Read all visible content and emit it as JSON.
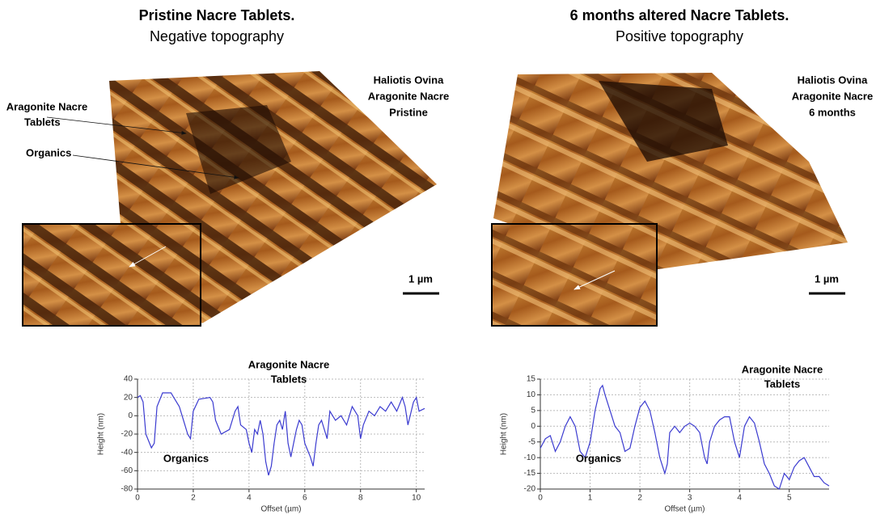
{
  "panels": [
    {
      "title": "Pristine Nacre Tablets.",
      "subtitle": "Negative topography",
      "sample_label": [
        "Haliotis Ovina",
        "Aragonite Nacre",
        "Pristine"
      ],
      "annotations": [
        "Aragonite Nacre",
        "Tablets",
        "Organics"
      ],
      "scale_bar": "1 µm"
    },
    {
      "title": "6 months altered Nacre Tablets.",
      "subtitle": "Positive topography",
      "sample_label": [
        "Haliotis Ovina",
        "Aragonite Nacre",
        "6 months"
      ],
      "scale_bar": "1 µm"
    }
  ],
  "chart_data": [
    {
      "type": "line",
      "xlabel": "Offset (µm)",
      "ylabel": "Height (nm)",
      "color": "#3b3bd0",
      "grid": true,
      "annotations": [
        "Aragonite Nacre",
        "Tablets",
        "Organics"
      ],
      "xlim": [
        0,
        10.3
      ],
      "xticks": [
        0,
        2,
        4,
        6,
        8,
        10
      ],
      "ylim": [
        -80,
        40
      ],
      "yticks": [
        -80,
        -60,
        -40,
        -20,
        0,
        20,
        40
      ],
      "x": [
        0,
        0.1,
        0.2,
        0.3,
        0.5,
        0.6,
        0.7,
        0.9,
        1.2,
        1.3,
        1.5,
        1.7,
        1.8,
        1.9,
        2.0,
        2.2,
        2.6,
        2.7,
        2.8,
        3.0,
        3.3,
        3.5,
        3.6,
        3.7,
        3.9,
        4.0,
        4.1,
        4.2,
        4.3,
        4.4,
        4.5,
        4.6,
        4.7,
        4.8,
        4.9,
        5.0,
        5.1,
        5.2,
        5.3,
        5.4,
        5.5,
        5.6,
        5.7,
        5.8,
        5.9,
        6.0,
        6.2,
        6.3,
        6.4,
        6.5,
        6.6,
        6.8,
        6.9,
        7.1,
        7.3,
        7.5,
        7.7,
        7.9,
        8.0,
        8.1,
        8.3,
        8.5,
        8.7,
        8.9,
        9.1,
        9.3,
        9.5,
        9.6,
        9.7,
        9.9,
        10.0,
        10.1,
        10.3
      ],
      "values": [
        20,
        22,
        15,
        -20,
        -35,
        -30,
        10,
        25,
        25,
        20,
        10,
        -10,
        -20,
        -25,
        5,
        18,
        20,
        15,
        -5,
        -20,
        -15,
        5,
        10,
        -10,
        -15,
        -30,
        -40,
        -15,
        -20,
        -5,
        -20,
        -50,
        -65,
        -55,
        -30,
        -10,
        -5,
        -15,
        5,
        -30,
        -45,
        -30,
        -15,
        -5,
        -10,
        -30,
        -45,
        -55,
        -30,
        -10,
        -5,
        -25,
        5,
        -5,
        0,
        -10,
        10,
        0,
        -25,
        -10,
        5,
        0,
        10,
        5,
        15,
        5,
        20,
        10,
        -10,
        15,
        20,
        5,
        8
      ]
    },
    {
      "type": "line",
      "xlabel": "Offset (µm)",
      "ylabel": "Height (nm)",
      "color": "#3b3bd0",
      "grid": true,
      "annotations": [
        "Aragonite Nacre",
        "Tablets",
        "Organics"
      ],
      "xlim": [
        0,
        5.8
      ],
      "xticks": [
        0,
        1,
        2,
        3,
        4,
        5
      ],
      "ylim": [
        -20,
        15
      ],
      "yticks": [
        -20,
        -15,
        -10,
        -5,
        0,
        5,
        10,
        15
      ],
      "x": [
        0,
        0.1,
        0.2,
        0.3,
        0.4,
        0.5,
        0.6,
        0.7,
        0.8,
        0.9,
        1.0,
        1.1,
        1.2,
        1.25,
        1.3,
        1.4,
        1.5,
        1.6,
        1.7,
        1.8,
        1.9,
        2.0,
        2.1,
        2.2,
        2.3,
        2.4,
        2.5,
        2.55,
        2.6,
        2.7,
        2.8,
        2.9,
        3.0,
        3.1,
        3.2,
        3.3,
        3.35,
        3.4,
        3.5,
        3.6,
        3.7,
        3.8,
        3.9,
        4.0,
        4.1,
        4.2,
        4.3,
        4.4,
        4.5,
        4.6,
        4.7,
        4.8,
        4.9,
        5.0,
        5.1,
        5.2,
        5.3,
        5.4,
        5.5,
        5.6,
        5.7,
        5.8
      ],
      "values": [
        -7,
        -4,
        -3,
        -8,
        -5,
        0,
        3,
        0,
        -8,
        -10,
        -5,
        5,
        12,
        13,
        10,
        5,
        0,
        -2,
        -8,
        -7,
        0,
        6,
        8,
        5,
        -2,
        -10,
        -15,
        -12,
        -2,
        0,
        -2,
        0,
        1,
        0,
        -2,
        -10,
        -12,
        -5,
        0,
        2,
        3,
        3,
        -5,
        -10,
        0,
        3,
        1,
        -5,
        -12,
        -15,
        -19,
        -20,
        -15,
        -17,
        -13,
        -11,
        -10,
        -13,
        -16,
        -16,
        -18,
        -19
      ]
    }
  ]
}
